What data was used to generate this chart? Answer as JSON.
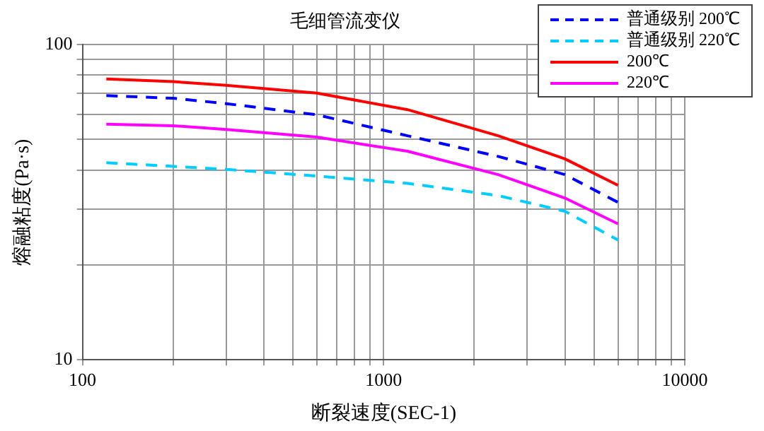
{
  "chart_data": {
    "type": "line",
    "title": "毛细管流变仪",
    "xlabel": "断裂速度(SEC-1)",
    "ylabel": "熔融粘度(Pa·s)",
    "log": "xy",
    "grid": true,
    "legend": "top right",
    "marker": "none",
    "x": [
      120,
      200,
      300,
      600,
      1200,
      2400,
      4000,
      6000
    ],
    "xlim": [
      100,
      10000
    ],
    "ylim": [
      10,
      100
    ],
    "xticks": [
      100,
      {
        "value": 200,
        "label": null
      },
      {
        "value": 300,
        "label": null
      },
      {
        "value": 400,
        "label": null
      },
      {
        "value": 500,
        "label": null
      },
      {
        "value": 600,
        "label": null
      },
      {
        "value": 700,
        "label": null
      },
      {
        "value": 800,
        "label": null
      },
      {
        "value": 900,
        "label": null
      },
      1000,
      {
        "value": 2000,
        "label": null
      },
      {
        "value": 3000,
        "label": null
      },
      {
        "value": 4000,
        "label": null
      },
      {
        "value": 5000,
        "label": null
      },
      {
        "value": 6000,
        "label": null
      },
      {
        "value": 7000,
        "label": null
      },
      {
        "value": 8000,
        "label": null
      },
      {
        "value": 9000,
        "label": null
      },
      10000
    ],
    "yticks": [
      10,
      {
        "value": 20,
        "label": null
      },
      {
        "value": 30,
        "label": null
      },
      {
        "value": 40,
        "label": null
      },
      {
        "value": 50,
        "label": null
      },
      {
        "value": 60,
        "label": null
      },
      {
        "value": 70,
        "label": null
      },
      {
        "value": 80,
        "label": null
      },
      {
        "value": 90,
        "label": null
      },
      100
    ],
    "series": [
      {
        "name": "普通级别 200℃",
        "color": "#0000ff",
        "line_style": "dashed",
        "values": [
          68.9,
          67.6,
          65,
          59.9,
          51.4,
          44.2,
          38.7,
          31.6
        ]
      },
      {
        "name": "普通级别 220℃",
        "color": "#00ccff",
        "line_style": "dashed",
        "values": [
          42.2,
          41.1,
          40.2,
          38.3,
          36.3,
          33.2,
          29.6,
          24
        ]
      },
      {
        "name": "200℃",
        "color": "#ff0000",
        "line_style": "solid",
        "values": [
          77.8,
          76.3,
          74.3,
          70.2,
          62.2,
          51.4,
          43.4,
          35.8
        ]
      },
      {
        "name": "220℃",
        "color": "#ff00ff",
        "line_style": "solid",
        "values": [
          55.9,
          55.3,
          53.8,
          50.9,
          45.9,
          38.7,
          32.6,
          27
        ]
      }
    ]
  }
}
